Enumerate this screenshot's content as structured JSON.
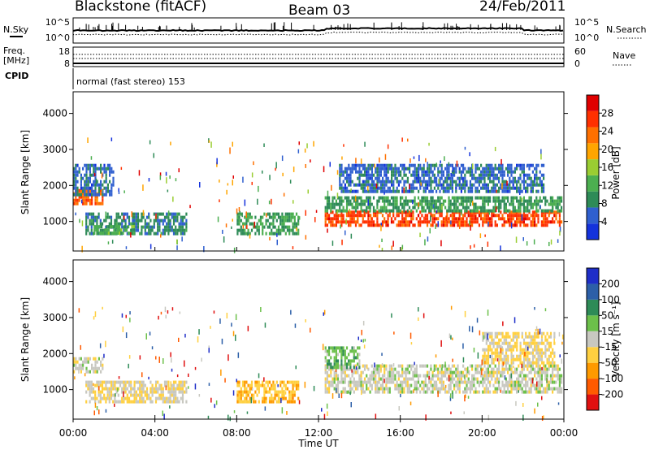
{
  "header": {
    "station": "Blackstone (fitACF)",
    "beam": "Beam 03",
    "date": "24/Feb/2011"
  },
  "top_panels": {
    "nsky_label": "N.Sky",
    "nsearch_label": "N.Search",
    "freq_label_1": "Freq.",
    "freq_label_2": "[MHz]",
    "nave_label": "Nave",
    "cpid_label": "CPID",
    "cpid_text": "normal (fast stereo) 153",
    "noise_left_ticks": [
      "10^5",
      "10^0"
    ],
    "noise_right_ticks": [
      "10^5",
      "10^0"
    ],
    "freq_left_ticks": [
      "18",
      "8"
    ],
    "nave_right_ticks": [
      "60",
      "0"
    ]
  },
  "axes": {
    "ylabel": "Slant Range [km]",
    "xlabel": "Time UT",
    "y_ticks": [
      "4000",
      "3000",
      "2000",
      "1000"
    ],
    "x_ticks": [
      "00:00",
      "04:00",
      "08:00",
      "12:00",
      "16:00",
      "20:00",
      "00:00"
    ]
  },
  "colorbars": {
    "power_label": "Power [dB]",
    "power_ticks": [
      "28",
      "24",
      "20",
      "16",
      "12",
      "8",
      "4"
    ],
    "velocity_label": "Velocity [m s⁻¹]",
    "velocity_ticks": [
      "200",
      "100",
      "50",
      "15",
      "-15",
      "-50",
      "-100",
      "-200"
    ],
    "power_colors": [
      "#1432dc",
      "#2f5fcf",
      "#2e8b57",
      "#4caf50",
      "#9acd32",
      "#ffa500",
      "#ff7000",
      "#ff3000",
      "#e00000"
    ],
    "velocity_colors": [
      "#e01010",
      "#ff5a00",
      "#ff9a00",
      "#ffd040",
      "#c8c8c0",
      "#6cc04a",
      "#2e8b57",
      "#2c5fa8",
      "#1e2ec8"
    ]
  },
  "chart_data": [
    {
      "type": "heatmap",
      "title": "",
      "quantity": "Power [dB]",
      "xlabel": "Time UT",
      "ylabel": "Slant Range [km]",
      "x_range_hours": [
        0,
        24
      ],
      "y_range_km": [
        180,
        4600
      ],
      "color_range": [
        0,
        32
      ],
      "regions": [
        {
          "t_start": 0.0,
          "t_end": 1.4,
          "r_low": 1450,
          "r_high": 1900,
          "value": 24
        },
        {
          "t_start": 0.0,
          "t_end": 2.0,
          "r_low": 1700,
          "r_high": 2600,
          "value": 6
        },
        {
          "t_start": 0.6,
          "t_end": 5.5,
          "r_low": 700,
          "r_high": 1250,
          "value": 8
        },
        {
          "t_start": 1.0,
          "t_end": 3.0,
          "r_low": 700,
          "r_high": 900,
          "value": 12
        },
        {
          "t_start": 8.0,
          "t_end": 11.0,
          "r_low": 650,
          "r_high": 1250,
          "value": 10
        },
        {
          "t_start": 12.3,
          "t_end": 23.9,
          "r_low": 900,
          "r_high": 1300,
          "value": 26
        },
        {
          "t_start": 12.3,
          "t_end": 23.9,
          "r_low": 1300,
          "r_high": 1700,
          "value": 10
        },
        {
          "t_start": 13.0,
          "t_end": 23.0,
          "r_low": 1800,
          "r_high": 2600,
          "value": 6
        }
      ]
    },
    {
      "type": "heatmap",
      "title": "",
      "quantity": "Velocity [m s⁻¹]",
      "xlabel": "Time UT",
      "ylabel": "Slant Range [km]",
      "x_range_hours": [
        0,
        24
      ],
      "y_range_km": [
        180,
        4600
      ],
      "color_range": [
        -200,
        200
      ],
      "regions": [
        {
          "t_start": 0.0,
          "t_end": 1.4,
          "r_low": 1450,
          "r_high": 1900,
          "value": 0
        },
        {
          "t_start": 0.6,
          "t_end": 5.5,
          "r_low": 700,
          "r_high": 1250,
          "value": -20
        },
        {
          "t_start": 8.0,
          "t_end": 11.0,
          "r_low": 650,
          "r_high": 1250,
          "value": -60
        },
        {
          "t_start": 12.3,
          "t_end": 23.9,
          "r_low": 900,
          "r_high": 1700,
          "value": 0
        },
        {
          "t_start": 12.3,
          "t_end": 14.0,
          "r_low": 1600,
          "r_high": 2200,
          "value": 50
        },
        {
          "t_start": 20.0,
          "t_end": 23.5,
          "r_low": 1700,
          "r_high": 2600,
          "value": -30
        }
      ]
    }
  ]
}
